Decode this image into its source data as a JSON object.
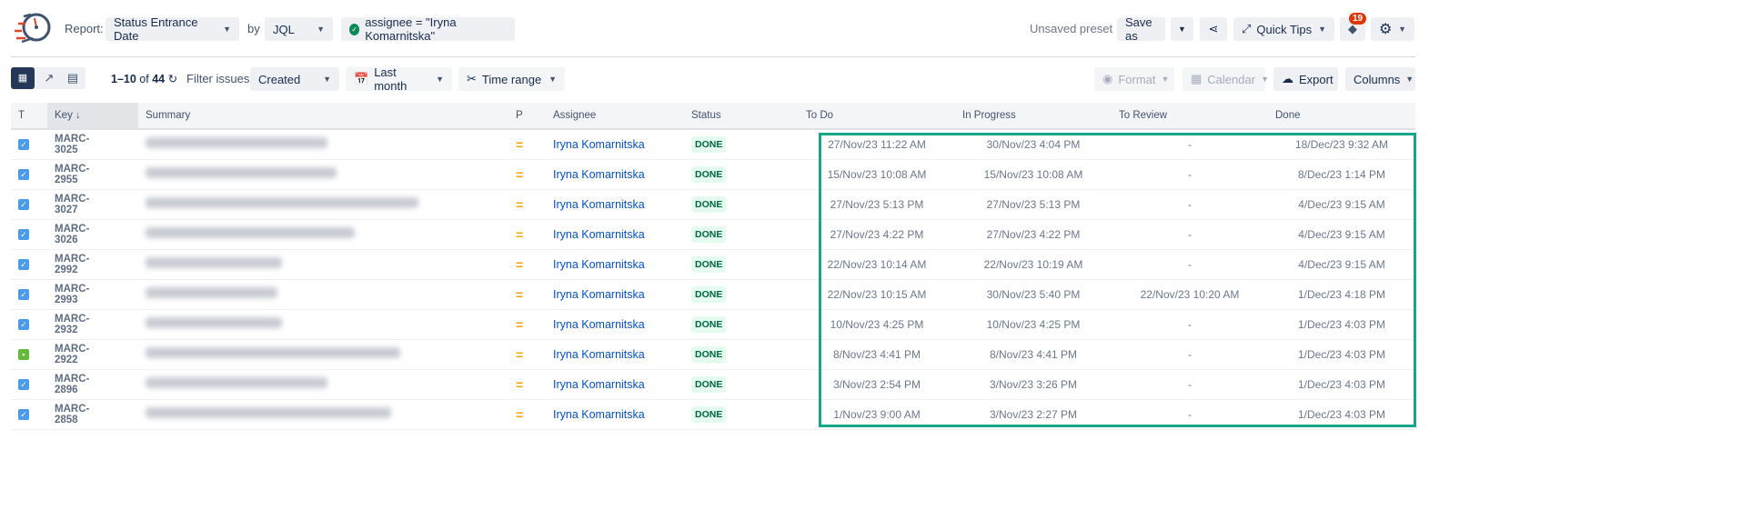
{
  "header": {
    "report_label": "Report:",
    "report_type": "Status Entrance Date",
    "by_label": "by",
    "source": "JQL",
    "query": "assignee = \"Iryna Komarnitska\"",
    "unsaved": "Unsaved preset",
    "save_as": "Save as",
    "quick_tips": "Quick Tips",
    "notification_count": "19"
  },
  "toolbar": {
    "range": "1–10",
    "of": "of",
    "total": "44",
    "filter_label": "Filter issues:",
    "filter_value": "Created",
    "period": "Last month",
    "time_range": "Time range",
    "format": "Format",
    "calendar": "Calendar",
    "export": "Export",
    "columns": "Columns"
  },
  "table": {
    "headers": [
      "T",
      "Key",
      "Summary",
      "P",
      "Assignee",
      "Status",
      "To Do",
      "In Progress",
      "To Review",
      "Done"
    ],
    "rows": [
      {
        "type": "task",
        "key": "MARC-3025",
        "assignee": "Iryna Komarnitska",
        "status": "DONE",
        "todo": "27/Nov/23 11:22 AM",
        "inprogress": "30/Nov/23 4:04 PM",
        "toreview": "-",
        "done": "18/Dec/23 9:32 AM"
      },
      {
        "type": "task",
        "key": "MARC-2955",
        "assignee": "Iryna Komarnitska",
        "status": "DONE",
        "todo": "15/Nov/23 10:08 AM",
        "inprogress": "15/Nov/23 10:08 AM",
        "toreview": "-",
        "done": "8/Dec/23 1:14 PM"
      },
      {
        "type": "task",
        "key": "MARC-3027",
        "assignee": "Iryna Komarnitska",
        "status": "DONE",
        "todo": "27/Nov/23 5:13 PM",
        "inprogress": "27/Nov/23 5:13 PM",
        "toreview": "-",
        "done": "4/Dec/23 9:15 AM"
      },
      {
        "type": "task",
        "key": "MARC-3026",
        "assignee": "Iryna Komarnitska",
        "status": "DONE",
        "todo": "27/Nov/23 4:22 PM",
        "inprogress": "27/Nov/23 4:22 PM",
        "toreview": "-",
        "done": "4/Dec/23 9:15 AM"
      },
      {
        "type": "task",
        "key": "MARC-2992",
        "assignee": "Iryna Komarnitska",
        "status": "DONE",
        "todo": "22/Nov/23 10:14 AM",
        "inprogress": "22/Nov/23 10:19 AM",
        "toreview": "-",
        "done": "4/Dec/23 9:15 AM"
      },
      {
        "type": "task",
        "key": "MARC-2993",
        "assignee": "Iryna Komarnitska",
        "status": "DONE",
        "todo": "22/Nov/23 10:15 AM",
        "inprogress": "30/Nov/23 5:40 PM",
        "toreview": "22/Nov/23 10:20 AM",
        "done": "1/Dec/23 4:18 PM"
      },
      {
        "type": "task",
        "key": "MARC-2932",
        "assignee": "Iryna Komarnitska",
        "status": "DONE",
        "todo": "10/Nov/23 4:25 PM",
        "inprogress": "10/Nov/23 4:25 PM",
        "toreview": "-",
        "done": "1/Dec/23 4:03 PM"
      },
      {
        "type": "story",
        "key": "MARC-2922",
        "assignee": "Iryna Komarnitska",
        "status": "DONE",
        "todo": "8/Nov/23 4:41 PM",
        "inprogress": "8/Nov/23 4:41 PM",
        "toreview": "-",
        "done": "1/Dec/23 4:03 PM"
      },
      {
        "type": "task",
        "key": "MARC-2896",
        "assignee": "Iryna Komarnitska",
        "status": "DONE",
        "todo": "3/Nov/23 2:54 PM",
        "inprogress": "3/Nov/23 3:26 PM",
        "toreview": "-",
        "done": "1/Dec/23 4:03 PM"
      },
      {
        "type": "task",
        "key": "MARC-2858",
        "assignee": "Iryna Komarnitska",
        "status": "DONE",
        "todo": "1/Nov/23 9:00 AM",
        "inprogress": "3/Nov/23 2:27 PM",
        "toreview": "-",
        "done": "1/Dec/23 4:03 PM"
      }
    ]
  },
  "colors": {
    "highlight": "#17a787",
    "done_bg": "#e3fcef",
    "link": "#0052cc",
    "badge": "#de350b"
  }
}
